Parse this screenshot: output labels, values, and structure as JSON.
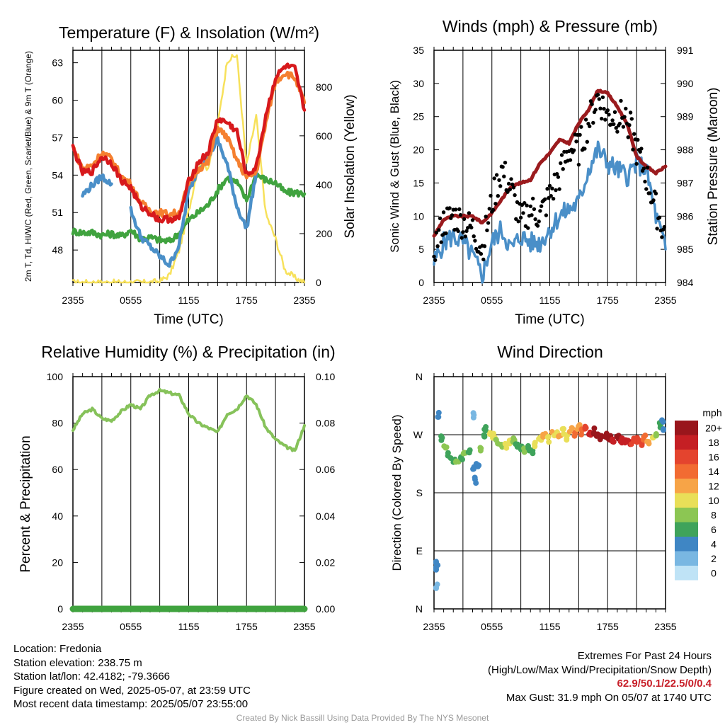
{
  "chart_data": [
    {
      "type": "line",
      "title": "Temperature (F) & Insolation (W/m²)",
      "xlabel": "Time (UTC)",
      "ylabel": "2m T, Td, HI/WC (Red, Green, Scarlet/Blue) & 9m T (Orange)",
      "ylabel_right": "Solar Insolation (Yellow)",
      "x_ticks": [
        "2355",
        "0555",
        "1155",
        "1755",
        "2355"
      ],
      "y_ticks": [
        48,
        51,
        54,
        57,
        60,
        63
      ],
      "y_ticks_right": [
        0,
        200,
        400,
        600,
        800
      ],
      "ylim": [
        45.4,
        64.0
      ],
      "ylim_right": [
        0,
        950
      ],
      "x_hours": [
        0,
        1,
        2,
        3,
        4,
        5,
        6,
        7,
        8,
        9,
        10,
        11,
        12,
        13,
        14,
        15,
        16,
        17,
        18,
        19,
        20,
        21,
        22,
        23,
        24
      ],
      "series": [
        {
          "name": "2m T",
          "color": "#d7191c",
          "axis": "left",
          "values": [
            56.2,
            54.2,
            54.3,
            55.5,
            55.0,
            53.6,
            53.0,
            51.5,
            51.0,
            50.4,
            50.5,
            50.5,
            53.5,
            55.0,
            55.8,
            58.5,
            58.2,
            57.5,
            54.0,
            54.6,
            58.8,
            61.8,
            62.7,
            62.5,
            59.2
          ]
        },
        {
          "name": "9m T",
          "color": "#f58030",
          "axis": "left",
          "values": [
            56.3,
            54.5,
            54.8,
            55.8,
            55.3,
            53.9,
            53.3,
            51.8,
            51.2,
            51.0,
            50.9,
            51.0,
            53.3,
            54.5,
            55.0,
            57.8,
            57.0,
            55.2,
            53.8,
            54.2,
            58.2,
            61.5,
            62.2,
            61.8,
            59.8
          ]
        },
        {
          "name": "Td",
          "color": "#40a33f",
          "axis": "left",
          "values": [
            49.5,
            49.4,
            49.4,
            49.2,
            49.3,
            49.1,
            49.6,
            48.9,
            49.0,
            48.8,
            48.7,
            49.3,
            50.4,
            51.0,
            51.6,
            52.8,
            53.8,
            53.4,
            52.0,
            54.1,
            53.6,
            53.4,
            52.6,
            52.6,
            52.5
          ]
        },
        {
          "name": "HI/WC",
          "color": "#4a8fc8",
          "axis": "left",
          "values": [
            null,
            52.4,
            53.2,
            53.9,
            53.3,
            null,
            51.2,
            49.1,
            48.3,
            47.5,
            46.8,
            48.4,
            52.7,
            54.5,
            55.5,
            56.8,
            54.8,
            51.5,
            49.7,
            54.2,
            null,
            null,
            null,
            null,
            null
          ]
        },
        {
          "name": "Solar Insolation",
          "color": "#f7e15b",
          "axis": "right",
          "values": [
            0,
            0,
            0,
            0,
            0,
            0,
            0,
            0,
            0,
            5,
            30,
            130,
            290,
            480,
            470,
            640,
            910,
            930,
            480,
            680,
            280,
            180,
            50,
            20,
            0
          ]
        }
      ]
    },
    {
      "type": "line",
      "title": "Winds (mph) & Pressure (mb)",
      "xlabel": "Time (UTC)",
      "ylabel": "Sonic Wind & Gust (Blue, Black)",
      "ylabel_right": "Station Pressure (Maroon)",
      "x_ticks": [
        "2355",
        "0555",
        "1155",
        "1755",
        "2355"
      ],
      "y_ticks": [
        0,
        5,
        10,
        15,
        20,
        25,
        30,
        35
      ],
      "y_ticks_right": [
        984,
        985,
        986,
        987,
        988,
        989,
        990,
        991
      ],
      "ylim": [
        0,
        35
      ],
      "ylim_right": [
        984,
        991
      ],
      "x_hours": [
        0,
        1,
        2,
        3,
        4,
        5,
        6,
        7,
        8,
        9,
        10,
        11,
        12,
        13,
        14,
        15,
        16,
        17,
        18,
        19,
        20,
        21,
        22,
        23,
        24
      ],
      "series": [
        {
          "name": "Sonic Wind",
          "color": "#4a8fc8",
          "axis": "left",
          "values": [
            3,
            6,
            7,
            6,
            4,
            1,
            6,
            8,
            5,
            7,
            6,
            6,
            8,
            10,
            11,
            12,
            17,
            20,
            18,
            17,
            16,
            18,
            17,
            10,
            5
          ]
        },
        {
          "name": "Station Pressure",
          "color": "#9b1b1e",
          "axis": "right",
          "values": [
            985.4,
            985.9,
            986.0,
            986.0,
            986.0,
            985.8,
            986.1,
            986.5,
            986.9,
            987.0,
            987.1,
            987.6,
            987.9,
            988.3,
            988.2,
            988.8,
            989.2,
            989.8,
            989.7,
            989.3,
            988.8,
            987.8,
            987.5,
            987.3,
            987.5
          ]
        },
        {
          "name": "Gust",
          "color": "#000000",
          "axis": "left",
          "values": [
            5,
            9,
            10,
            9,
            8,
            5,
            12,
            17,
            14,
            9,
            11,
            10,
            13,
            16,
            20,
            20,
            24,
            28,
            25,
            25,
            25,
            20,
            16,
            11,
            7
          ]
        }
      ]
    },
    {
      "type": "line",
      "title": "Relative Humidity (%) & Precipitation (in)",
      "xlabel": "",
      "ylabel": "Percent & Precipitation",
      "x_ticks": [
        "2355",
        "0555",
        "1155",
        "1755",
        "2355"
      ],
      "y_ticks": [
        0,
        20,
        40,
        60,
        80,
        100
      ],
      "y_ticks_right": [
        "0.00",
        "0.02",
        "0.04",
        "0.06",
        "0.08",
        "0.10"
      ],
      "ylim": [
        0,
        100
      ],
      "ylim_right": [
        0,
        0.1
      ],
      "x_hours": [
        0,
        1,
        2,
        3,
        4,
        5,
        6,
        7,
        8,
        9,
        10,
        11,
        12,
        13,
        14,
        15,
        16,
        17,
        18,
        19,
        20,
        21,
        22,
        23,
        24
      ],
      "series": [
        {
          "name": "Relative Humidity",
          "color": "#86c25a",
          "axis": "left",
          "values": [
            77,
            84,
            86,
            82,
            81,
            85,
            88,
            86,
            92,
            94,
            93,
            92,
            84,
            80,
            78,
            76,
            84,
            86,
            92,
            88,
            78,
            73,
            70,
            68,
            79
          ]
        },
        {
          "name": "Precipitation",
          "color": "#40a33f",
          "axis": "right",
          "values": [
            0,
            0,
            0,
            0,
            0,
            0,
            0,
            0,
            0,
            0,
            0,
            0,
            0,
            0,
            0,
            0,
            0,
            0,
            0,
            0,
            0,
            0,
            0,
            0,
            0
          ]
        }
      ]
    },
    {
      "type": "scatter",
      "title": "Wind Direction",
      "xlabel": "",
      "ylabel": "Direction (Colored By Speed)",
      "x_ticks": [
        "2355",
        "0555",
        "1155",
        "1755",
        "2355"
      ],
      "y_ticks": [
        "N",
        "E",
        "S",
        "W",
        "N"
      ],
      "ylim": [
        0,
        360
      ],
      "colorbar_title": "mph",
      "colorbar_labels": [
        "20+",
        "18",
        "16",
        "14",
        "12",
        "10",
        "8",
        "6",
        "4",
        "2",
        "0"
      ],
      "colorbar_colors": [
        "#99161c",
        "#c51f24",
        "#e4442e",
        "#f26b32",
        "#f7a447",
        "#e9df58",
        "#8cc653",
        "#3fa35b",
        "#3f86c4",
        "#79b7e2",
        "#bfe3f6"
      ],
      "points": [
        {
          "x": 0.0,
          "dir": 60,
          "speed": 3
        },
        {
          "x": 0.2,
          "dir": 35,
          "speed": 2
        },
        {
          "x": 0.3,
          "dir": 70,
          "speed": 4
        },
        {
          "x": 0.4,
          "dir": 300,
          "speed": 4
        },
        {
          "x": 0.8,
          "dir": 265,
          "speed": 6
        },
        {
          "x": 1.2,
          "dir": 250,
          "speed": 7
        },
        {
          "x": 1.6,
          "dir": 238,
          "speed": 6
        },
        {
          "x": 2.0,
          "dir": 230,
          "speed": 6
        },
        {
          "x": 2.4,
          "dir": 228,
          "speed": 7
        },
        {
          "x": 2.8,
          "dir": 235,
          "speed": 6
        },
        {
          "x": 3.2,
          "dir": 240,
          "speed": 7
        },
        {
          "x": 3.6,
          "dir": 245,
          "speed": 6
        },
        {
          "x": 4.0,
          "dir": 300,
          "speed": 2
        },
        {
          "x": 4.1,
          "dir": 215,
          "speed": 4
        },
        {
          "x": 4.3,
          "dir": 200,
          "speed": 3
        },
        {
          "x": 4.5,
          "dir": 225,
          "speed": 4
        },
        {
          "x": 4.8,
          "dir": 248,
          "speed": 7
        },
        {
          "x": 5.1,
          "dir": 268,
          "speed": 6
        },
        {
          "x": 5.4,
          "dir": 278,
          "speed": 6
        },
        {
          "x": 5.8,
          "dir": 272,
          "speed": 10
        },
        {
          "x": 6.2,
          "dir": 268,
          "speed": 9
        },
        {
          "x": 6.6,
          "dir": 260,
          "speed": 8
        },
        {
          "x": 7.0,
          "dir": 255,
          "speed": 7
        },
        {
          "x": 7.4,
          "dir": 252,
          "speed": 10
        },
        {
          "x": 7.8,
          "dir": 258,
          "speed": 9
        },
        {
          "x": 8.2,
          "dir": 262,
          "speed": 7
        },
        {
          "x": 8.6,
          "dir": 255,
          "speed": 6
        },
        {
          "x": 9.0,
          "dir": 248,
          "speed": 6
        },
        {
          "x": 9.4,
          "dir": 245,
          "speed": 7
        },
        {
          "x": 9.8,
          "dir": 250,
          "speed": 6
        },
        {
          "x": 10.2,
          "dir": 242,
          "speed": 5
        },
        {
          "x": 10.6,
          "dir": 255,
          "speed": 9
        },
        {
          "x": 11.0,
          "dir": 262,
          "speed": 10
        },
        {
          "x": 11.4,
          "dir": 268,
          "speed": 11
        },
        {
          "x": 11.8,
          "dir": 262,
          "speed": 9
        },
        {
          "x": 12.2,
          "dir": 270,
          "speed": 11
        },
        {
          "x": 12.6,
          "dir": 272,
          "speed": 10
        },
        {
          "x": 13.0,
          "dir": 268,
          "speed": 12
        },
        {
          "x": 13.4,
          "dir": 275,
          "speed": 10
        },
        {
          "x": 13.8,
          "dir": 265,
          "speed": 9
        },
        {
          "x": 14.2,
          "dir": 278,
          "speed": 12
        },
        {
          "x": 14.6,
          "dir": 270,
          "speed": 13
        },
        {
          "x": 15.0,
          "dir": 282,
          "speed": 12
        },
        {
          "x": 15.4,
          "dir": 275,
          "speed": 14
        },
        {
          "x": 15.8,
          "dir": 280,
          "speed": 15
        },
        {
          "x": 16.2,
          "dir": 272,
          "speed": 17
        },
        {
          "x": 16.6,
          "dir": 276,
          "speed": 19
        },
        {
          "x": 17.0,
          "dir": 270,
          "speed": 20
        },
        {
          "x": 17.4,
          "dir": 265,
          "speed": 21
        },
        {
          "x": 17.8,
          "dir": 268,
          "speed": 19
        },
        {
          "x": 18.2,
          "dir": 264,
          "speed": 20
        },
        {
          "x": 18.6,
          "dir": 262,
          "speed": 18
        },
        {
          "x": 19.0,
          "dir": 266,
          "speed": 19
        },
        {
          "x": 19.4,
          "dir": 260,
          "speed": 17
        },
        {
          "x": 19.8,
          "dir": 262,
          "speed": 18
        },
        {
          "x": 20.2,
          "dir": 258,
          "speed": 17
        },
        {
          "x": 20.6,
          "dir": 260,
          "speed": 16
        },
        {
          "x": 21.0,
          "dir": 262,
          "speed": 15
        },
        {
          "x": 21.4,
          "dir": 258,
          "speed": 16
        },
        {
          "x": 21.8,
          "dir": 264,
          "speed": 14
        },
        {
          "x": 22.2,
          "dir": 256,
          "speed": 12
        },
        {
          "x": 22.6,
          "dir": 262,
          "speed": 10
        },
        {
          "x": 23.0,
          "dir": 270,
          "speed": 8
        },
        {
          "x": 23.4,
          "dir": 285,
          "speed": 5
        },
        {
          "x": 23.7,
          "dir": 290,
          "speed": 4
        },
        {
          "x": 24.0,
          "dir": 275,
          "speed": 4
        }
      ]
    }
  ],
  "info_left": [
    "Location: Fredonia",
    "Station elevation: 238.75 m",
    "Station lat/lon: 42.4182; -79.3666",
    "Figure created on Wed, 2025-05-07, at 23:59 UTC",
    "Most recent data timestamp: 2025/05/07 23:55:00"
  ],
  "extremes_title": "Extremes For Past 24 Hours",
  "extremes_subtitle": "(High/Low/Max Wind/Precipitation/Snow Depth)",
  "extremes_values": "62.9/50.1/22.5/0/0.4",
  "max_gust": "Max Gust: 31.9 mph On 05/07 at 1740 UTC",
  "credit": "Created By Nick Bassill Using Data Provided By The NYS Mesonet"
}
